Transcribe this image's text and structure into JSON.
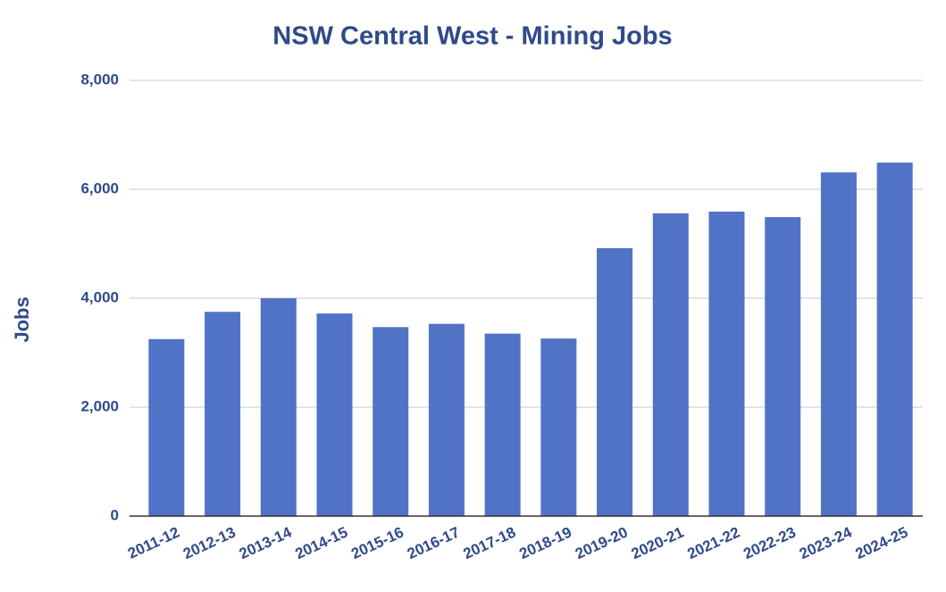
{
  "chart_data": {
    "type": "bar",
    "title": "NSW Central West - Mining Jobs",
    "y_label": "Jobs",
    "categories": [
      "2011-12",
      "2012-13",
      "2013-14",
      "2014-15",
      "2015-16",
      "2016-17",
      "2017-18",
      "2018-19",
      "2019-20",
      "2020-21",
      "2021-22",
      "2022-23",
      "2023-24",
      "2024-25"
    ],
    "values": [
      3250,
      3750,
      4000,
      3720,
      3470,
      3530,
      3350,
      3260,
      4920,
      5560,
      5590,
      5490,
      6310,
      6490
    ],
    "color": "#5173c5",
    "ylim": [
      0,
      8000
    ],
    "yticks": [
      0,
      {
        "value": 2000,
        "label": "2,000"
      },
      {
        "value": 4000,
        "label": "4,000"
      },
      {
        "value": 6000,
        "label": "6,000"
      },
      {
        "value": 8000,
        "label": "8,000"
      }
    ],
    "grid": true
  }
}
